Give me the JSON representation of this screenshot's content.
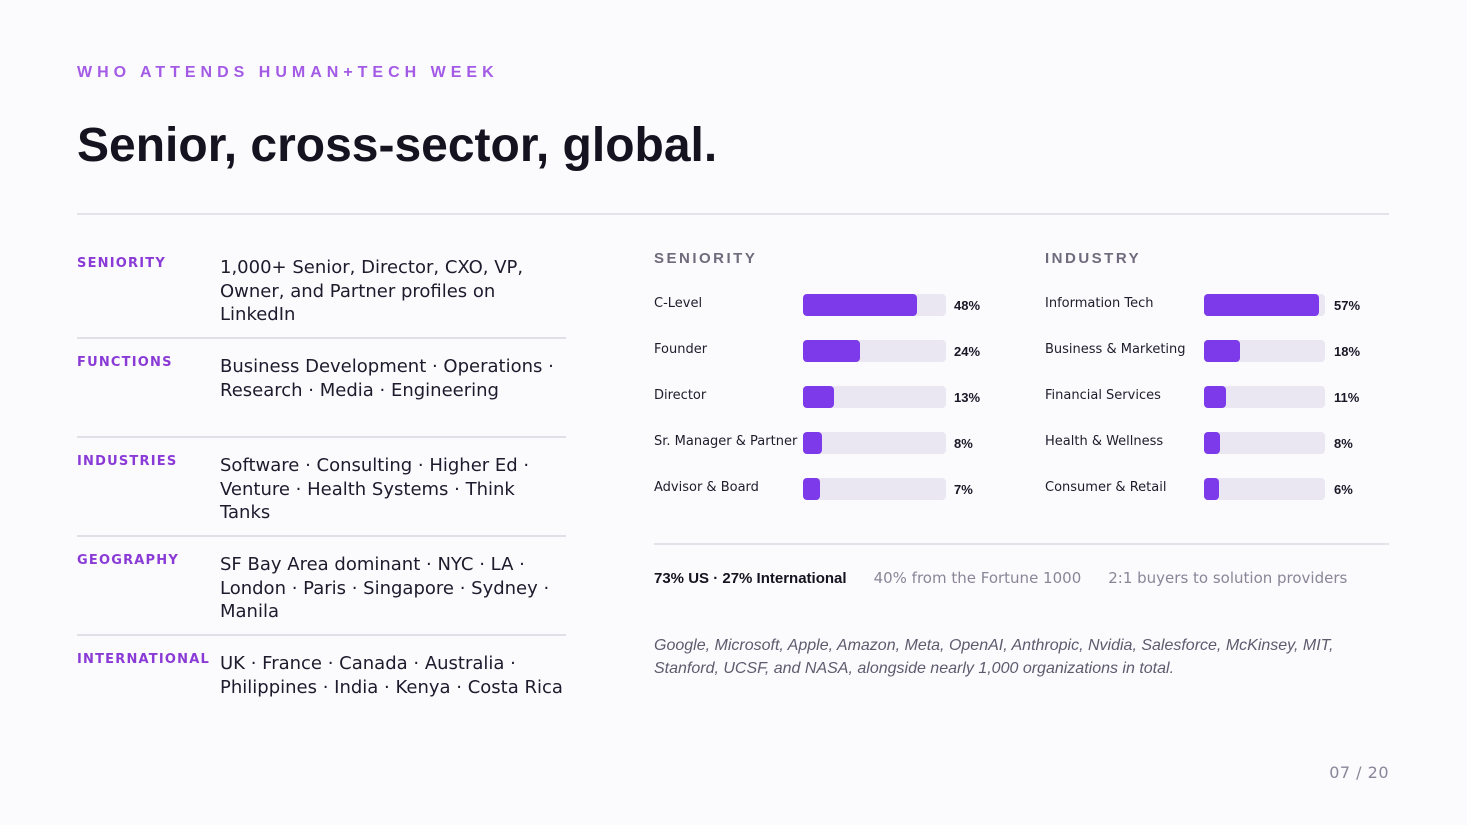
{
  "eyebrow": "WHO ATTENDS HUMAN+TECH WEEK",
  "title": "Senior, cross-sector, global.",
  "info": [
    {
      "label": "SENIORITY",
      "value": "1,000+ Senior, Director, CXO, VP, Owner, and Partner profiles on LinkedIn"
    },
    {
      "label": "FUNCTIONS",
      "value": "Business Development · Operations · Research · Media · Engineering"
    },
    {
      "label": "INDUSTRIES",
      "value": "Software · Consulting · Higher Ed · Venture · Health Systems · Think Tanks"
    },
    {
      "label": "GEOGRAPHY",
      "value": "SF Bay Area dominant · NYC · LA · London · Paris · Singapore · Sydney · Manila"
    },
    {
      "label": "INTERNATIONAL",
      "value": "UK · France · Canada · Australia · Philippines · India · Kenya · Costa Rica"
    }
  ],
  "chart_data": [
    {
      "type": "bar",
      "title": "SENIORITY",
      "categories": [
        "C-Level",
        "Founder",
        "Director",
        "Sr. Manager & Partner",
        "Advisor & Board"
      ],
      "values": [
        48,
        24,
        13,
        8,
        7
      ],
      "value_labels": [
        "48%",
        "24%",
        "13%",
        "8%",
        "7%"
      ],
      "ylim": [
        0,
        60
      ],
      "bar_color": "#7c3aea",
      "track_color": "#ebe7f2"
    },
    {
      "type": "bar",
      "title": "INDUSTRY",
      "categories": [
        "Information Tech",
        "Business & Marketing",
        "Financial Services",
        "Health & Wellness",
        "Consumer & Retail"
      ],
      "values": [
        57,
        18,
        11,
        8,
        6
      ],
      "value_labels": [
        "57%",
        "18%",
        "11%",
        "8%",
        "6%"
      ],
      "ylim": [
        0,
        60
      ],
      "bar_color": "#7c3aea",
      "track_color": "#ebe7f2"
    }
  ],
  "stats": {
    "main": "73% US · 27% International",
    "fortune": "40% from the Fortune 1000",
    "buyers": "2:1 buyers to solution providers"
  },
  "orgs": "Google, Microsoft, Apple, Amazon, Meta, OpenAI, Anthropic, Nvidia, Salesforce, McKinsey, MIT, Stanford, UCSF, and NASA, alongside nearly 1,000 organizations in total.",
  "page_number": "07 / 20",
  "colors": {
    "accent": "#7c3aea",
    "eyebrow": "#a35be6",
    "label": "#8a3bd6"
  }
}
